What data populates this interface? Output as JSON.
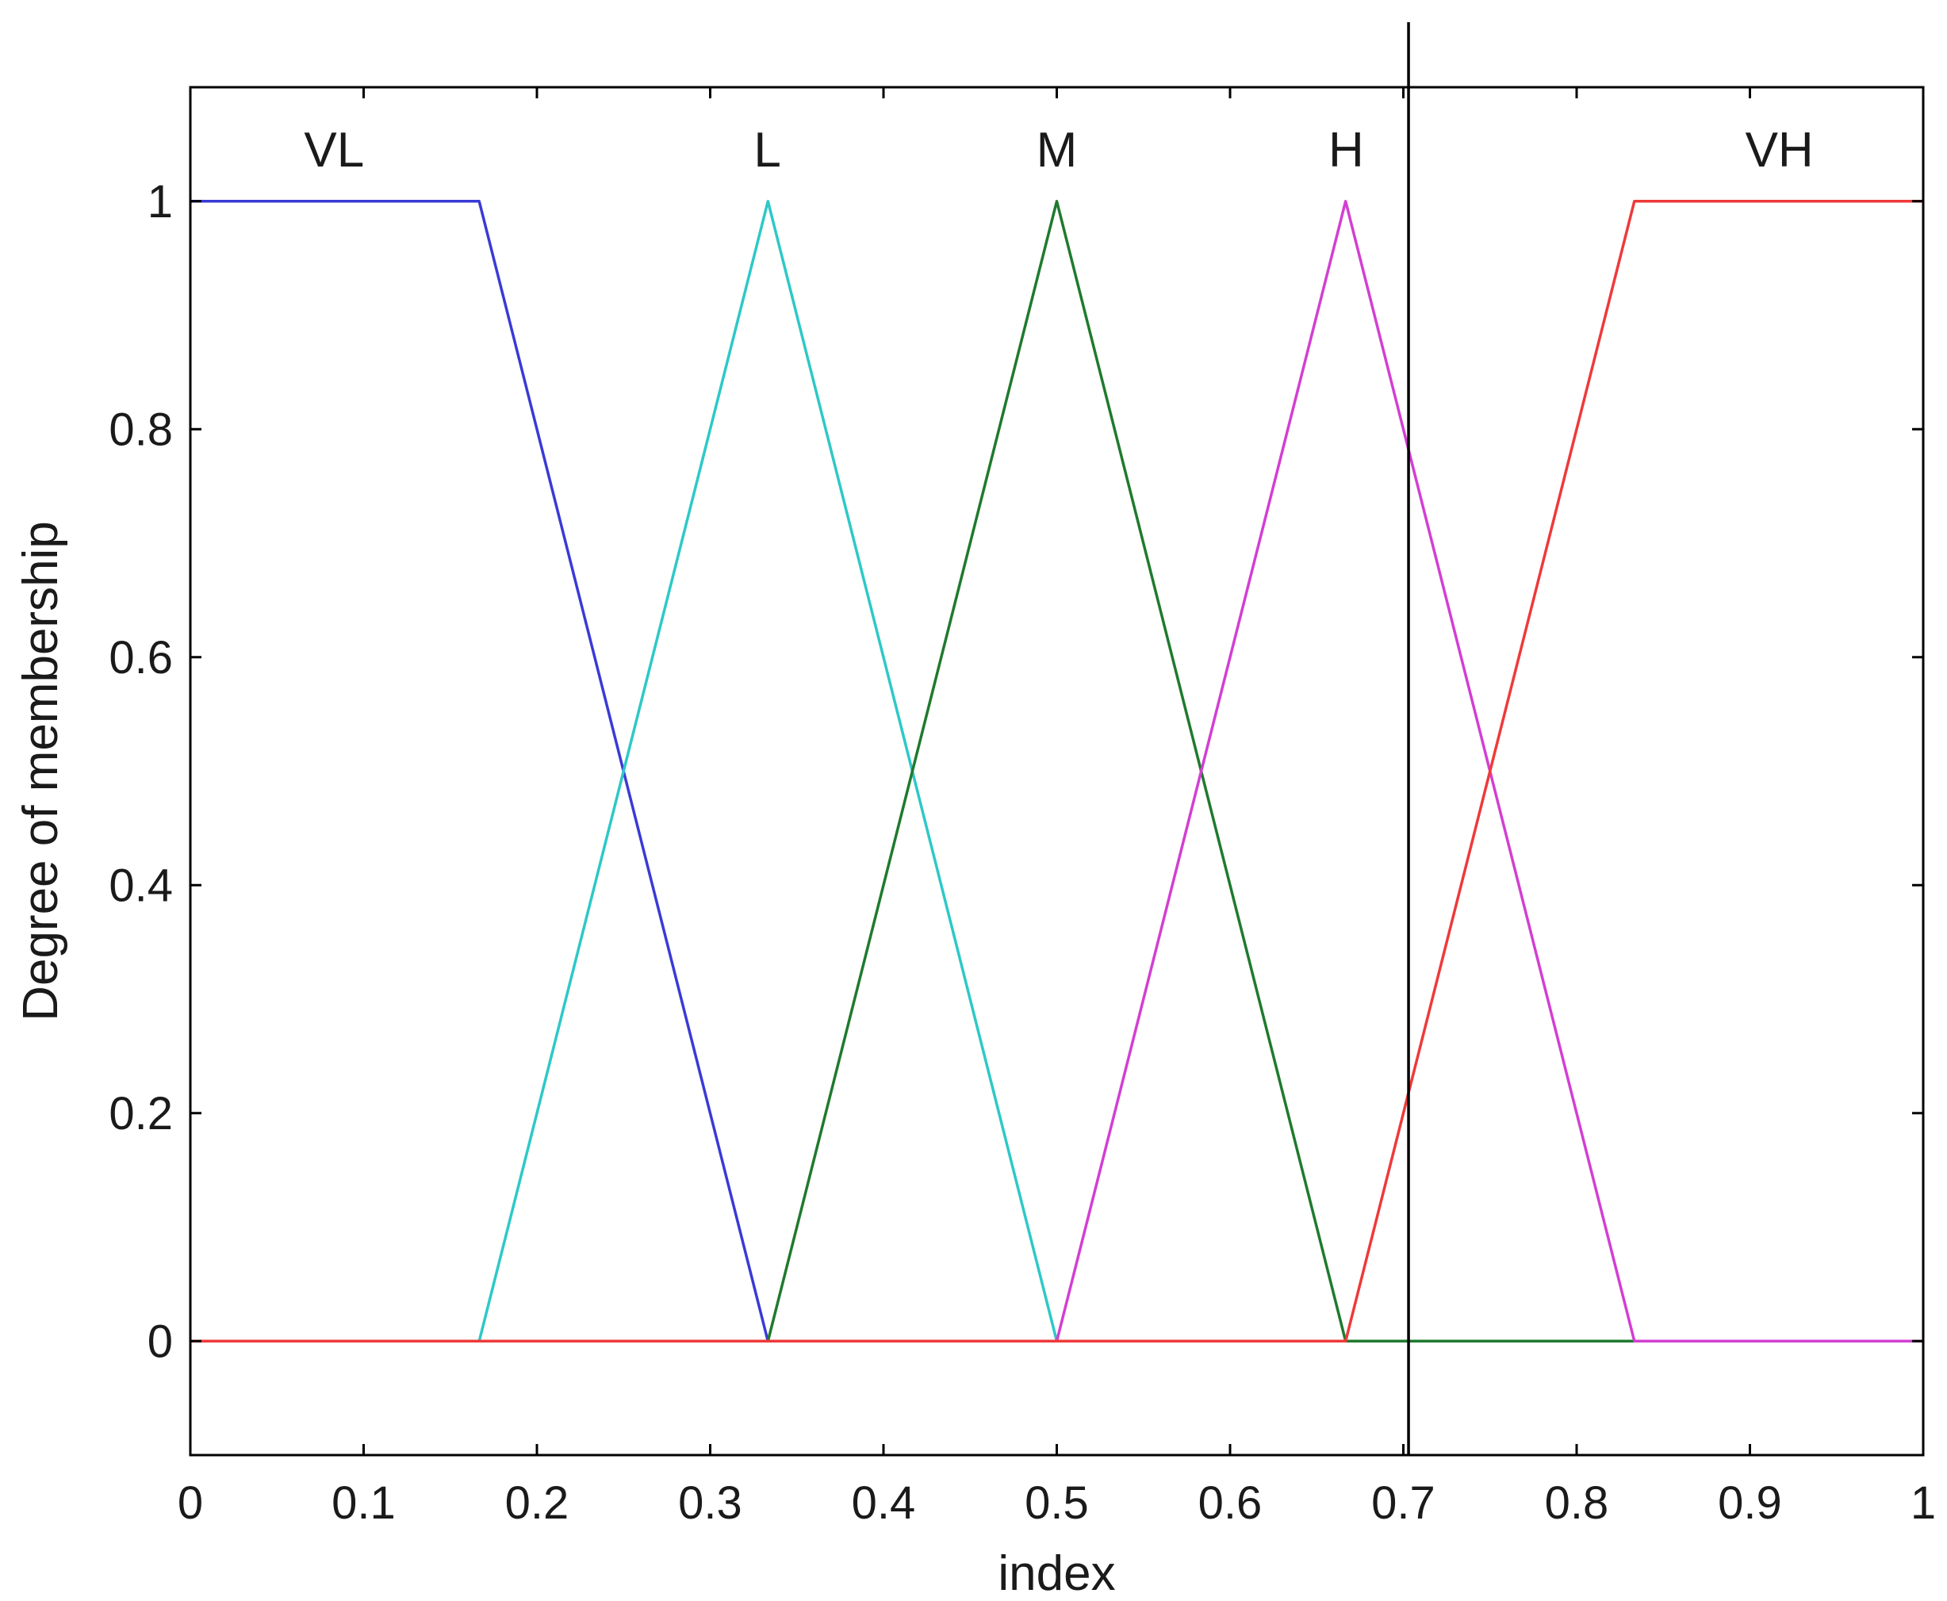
{
  "chart_data": {
    "type": "line",
    "title": "",
    "xlabel": "index",
    "ylabel": "Degree of membership",
    "xlim": [
      0,
      1
    ],
    "ylim": [
      -0.1,
      1.1
    ],
    "x_ticks": [
      "0",
      "0.1",
      "0.2",
      "0.3",
      "0.4",
      "0.5",
      "0.6",
      "0.7",
      "0.8",
      "0.9",
      "1"
    ],
    "y_ticks": [
      "0",
      "0.2",
      "0.4",
      "0.6",
      "0.8",
      "1"
    ],
    "grid": false,
    "series": [
      {
        "name": "VL",
        "color": "#3a3ad6",
        "points": [
          [
            0,
            1
          ],
          [
            0.1667,
            1
          ],
          [
            0.3333,
            0
          ],
          [
            1,
            0
          ]
        ],
        "label_x": 0.083
      },
      {
        "name": "L",
        "color": "#2ec8c8",
        "points": [
          [
            0,
            0
          ],
          [
            0.1667,
            0
          ],
          [
            0.3333,
            1
          ],
          [
            0.5,
            0
          ],
          [
            1,
            0
          ]
        ],
        "label_x": 0.333
      },
      {
        "name": "M",
        "color": "#1f7a2e",
        "points": [
          [
            0,
            0
          ],
          [
            0.3333,
            0
          ],
          [
            0.5,
            1
          ],
          [
            0.6667,
            0
          ],
          [
            1,
            0
          ]
        ],
        "label_x": 0.5
      },
      {
        "name": "H",
        "color": "#d23fd2",
        "points": [
          [
            0,
            0
          ],
          [
            0.5,
            0
          ],
          [
            0.6667,
            1
          ],
          [
            0.8333,
            0
          ],
          [
            1,
            0
          ]
        ],
        "label_x": 0.667
      },
      {
        "name": "VH",
        "color": "#ee3a3a",
        "points": [
          [
            0,
            0
          ],
          [
            0.6667,
            0
          ],
          [
            0.8333,
            1
          ],
          [
            1,
            1
          ]
        ],
        "label_x": 0.917
      }
    ],
    "vertical_marker": {
      "x": 0.703,
      "color": "#000000"
    }
  }
}
